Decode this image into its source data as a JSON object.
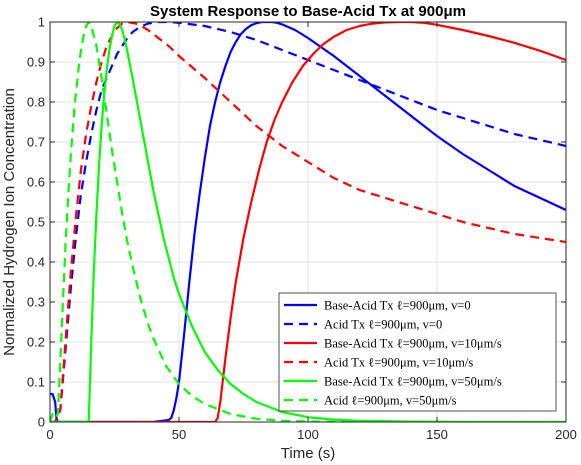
{
  "chart_data": {
    "type": "line",
    "title": "System Response to Base-Acid Tx at 900μm",
    "xlabel": "Time (s)",
    "ylabel": "Normalized Hydrogen Ion Concentration",
    "xlim": [
      0,
      200
    ],
    "ylim": [
      0,
      1
    ],
    "xticks": [
      0,
      50,
      100,
      150,
      200
    ],
    "xtick_labels": [
      "0",
      "50",
      "100",
      "150",
      "200"
    ],
    "yticks": [
      0,
      0.1,
      0.2,
      0.3,
      0.4,
      0.5,
      0.6,
      0.7,
      0.8,
      0.9,
      1
    ],
    "ytick_labels": [
      "0",
      "0.1",
      "0.2",
      "0.3",
      "0.4",
      "0.5",
      "0.6",
      "0.7",
      "0.8",
      "0.9",
      "1"
    ],
    "grid": true,
    "legend_position": "bottom-right",
    "series": [
      {
        "name": "Base-Acid Tx ℓ=900μm, v=0",
        "color": "#0000ff",
        "dash": "solid",
        "x": [
          0,
          1,
          2,
          2.5,
          3,
          40,
          46,
          47,
          48,
          49,
          50,
          52,
          54,
          56,
          58,
          60,
          62,
          64,
          66,
          68,
          70,
          72,
          74,
          76,
          78,
          80,
          82,
          84,
          86,
          88,
          90,
          95,
          100,
          110,
          120,
          130,
          140,
          150,
          160,
          170,
          180,
          190,
          200
        ],
        "y": [
          0.07,
          0.07,
          0.05,
          0.01,
          0,
          0,
          0.005,
          0.01,
          0.03,
          0.06,
          0.1,
          0.22,
          0.35,
          0.47,
          0.57,
          0.66,
          0.74,
          0.8,
          0.85,
          0.89,
          0.925,
          0.95,
          0.97,
          0.983,
          0.992,
          0.997,
          1.0,
          1.0,
          1.0,
          0.998,
          0.994,
          0.98,
          0.96,
          0.915,
          0.865,
          0.815,
          0.765,
          0.715,
          0.67,
          0.63,
          0.59,
          0.56,
          0.53
        ]
      },
      {
        "name": "Acid Tx ℓ=900μm, v=0",
        "color": "#0000ff",
        "dash": "dashed",
        "x": [
          0,
          2,
          4,
          6,
          8,
          10,
          12,
          14,
          16,
          18,
          20,
          22,
          24,
          26,
          28,
          30,
          32,
          35,
          38,
          42,
          46,
          50,
          60,
          70,
          80,
          90,
          100,
          110,
          120,
          130,
          140,
          150,
          160,
          170,
          180,
          190,
          200
        ],
        "y": [
          0,
          0,
          0.03,
          0.18,
          0.33,
          0.46,
          0.57,
          0.65,
          0.72,
          0.78,
          0.83,
          0.86,
          0.89,
          0.92,
          0.94,
          0.96,
          0.975,
          0.988,
          0.996,
          1.0,
          1.0,
          0.998,
          0.99,
          0.975,
          0.955,
          0.93,
          0.905,
          0.88,
          0.855,
          0.83,
          0.805,
          0.78,
          0.76,
          0.74,
          0.72,
          0.705,
          0.69
        ]
      },
      {
        "name": "Base-Acid Tx ℓ=900μm, v=10μm/s",
        "color": "#ff0000",
        "dash": "solid",
        "x": [
          0,
          64,
          65,
          66,
          68,
          70,
          72,
          75,
          78,
          81,
          84,
          87,
          90,
          94,
          98,
          102,
          106,
          110,
          115,
          120,
          125,
          130,
          135,
          140,
          145,
          150,
          160,
          170,
          180,
          190,
          200
        ],
        "y": [
          0,
          0,
          0.01,
          0.05,
          0.16,
          0.26,
          0.35,
          0.46,
          0.55,
          0.63,
          0.7,
          0.755,
          0.8,
          0.85,
          0.89,
          0.92,
          0.945,
          0.963,
          0.98,
          0.99,
          0.996,
          0.999,
          1.0,
          1.0,
          0.998,
          0.993,
          0.98,
          0.965,
          0.948,
          0.928,
          0.905
        ]
      },
      {
        "name": "Acid Tx ℓ=900μm, v=10μm/s",
        "color": "#ff0000",
        "dash": "dashed",
        "x": [
          0,
          2,
          4,
          6,
          8,
          10,
          12,
          14,
          16,
          18,
          20,
          22,
          24,
          26,
          28,
          30,
          34,
          38,
          42,
          46,
          50,
          60,
          70,
          80,
          90,
          100,
          110,
          120,
          130,
          140,
          150,
          160,
          170,
          180,
          190,
          200
        ],
        "y": [
          0,
          0,
          0.03,
          0.2,
          0.37,
          0.51,
          0.63,
          0.72,
          0.79,
          0.85,
          0.9,
          0.94,
          0.965,
          0.985,
          0.996,
          1.0,
          0.995,
          0.98,
          0.96,
          0.94,
          0.915,
          0.86,
          0.8,
          0.74,
          0.69,
          0.65,
          0.61,
          0.58,
          0.56,
          0.54,
          0.52,
          0.5,
          0.485,
          0.47,
          0.46,
          0.45
        ]
      },
      {
        "name": "Base-Acid Tx ℓ=900μm, v=50μm/s",
        "color": "#00ff00",
        "dash": "solid",
        "x": [
          0,
          15,
          16,
          17,
          18,
          19,
          20,
          21,
          22,
          23,
          24,
          25,
          26,
          27,
          28,
          29,
          30,
          32,
          34,
          36,
          38,
          40,
          42,
          44,
          46,
          48,
          50,
          55,
          60,
          65,
          70,
          75,
          80,
          90,
          100,
          110,
          120,
          140,
          160,
          180,
          200
        ],
        "y": [
          0,
          0,
          0.2,
          0.38,
          0.52,
          0.64,
          0.74,
          0.82,
          0.88,
          0.93,
          0.965,
          0.99,
          1.0,
          0.995,
          0.98,
          0.955,
          0.925,
          0.86,
          0.79,
          0.72,
          0.65,
          0.58,
          0.52,
          0.46,
          0.41,
          0.36,
          0.32,
          0.24,
          0.175,
          0.13,
          0.095,
          0.07,
          0.05,
          0.025,
          0.012,
          0.006,
          0.003,
          0.001,
          0,
          0,
          0
        ]
      },
      {
        "name": "Acid ℓ=900μm, v=50μm/s",
        "color": "#00ff00",
        "dash": "dashed",
        "x": [
          0,
          1,
          2,
          3,
          4,
          5,
          6,
          7,
          8,
          9,
          10,
          11,
          12,
          13,
          14,
          15,
          16,
          18,
          20,
          22,
          24,
          26,
          28,
          30,
          32,
          35,
          38,
          40,
          45,
          50,
          55,
          60,
          70,
          80,
          90,
          100,
          120,
          140,
          160,
          200
        ],
        "y": [
          0,
          0.02,
          0.01,
          0.02,
          0.15,
          0.3,
          0.44,
          0.56,
          0.66,
          0.75,
          0.82,
          0.88,
          0.93,
          0.965,
          0.99,
          1.0,
          0.99,
          0.94,
          0.86,
          0.77,
          0.68,
          0.6,
          0.52,
          0.45,
          0.39,
          0.31,
          0.245,
          0.21,
          0.14,
          0.095,
          0.065,
          0.045,
          0.02,
          0.008,
          0.003,
          0.001,
          0,
          0,
          0,
          0
        ]
      }
    ]
  }
}
